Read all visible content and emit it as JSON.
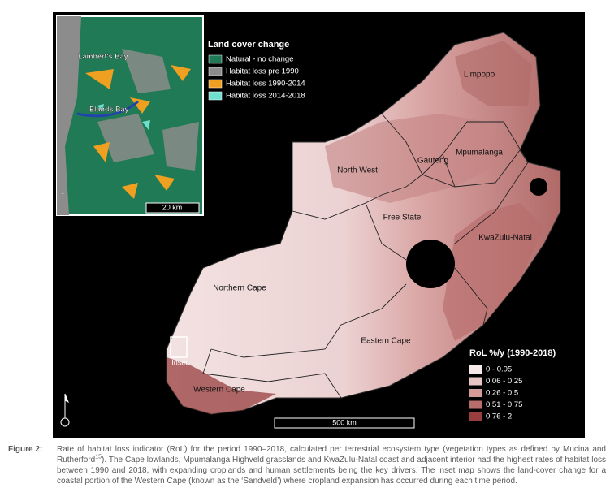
{
  "map": {
    "provinces": [
      "Limpopo",
      "Mpumalanga",
      "Gauteng",
      "North West",
      "Free State",
      "KwaZulu-Natal",
      "Northern Cape",
      "Eastern Cape",
      "Western Cape"
    ],
    "inset_label": "Inset",
    "scale_bar": "500 km",
    "legend": {
      "title": "RoL %/y (1990-2018)",
      "classes": [
        {
          "label": "0 - 0.05",
          "color": "#f6e9e9"
        },
        {
          "label": "0.06 - 0.25",
          "color": "#e8c4c4"
        },
        {
          "label": "0.26 - 0.5",
          "color": "#d39a98"
        },
        {
          "label": "0.51 - 0.75",
          "color": "#b86e6c"
        },
        {
          "label": "0.76 - 2",
          "color": "#983e3e"
        }
      ]
    }
  },
  "inset": {
    "places": [
      "Lambert's Bay",
      "Elands Bay"
    ],
    "scale_bar": "20 km",
    "legend": {
      "title": "Land cover change",
      "classes": [
        {
          "label": "Natural - no change",
          "color": "#1f7a55"
        },
        {
          "label": "Habitat loss  pre 1990",
          "color": "#8c8c8c"
        },
        {
          "label": "Habitat loss 1990-2014",
          "color": "#f0a020"
        },
        {
          "label": "Habitat loss 2014-2018",
          "color": "#6fe0d0"
        }
      ]
    }
  },
  "figure": {
    "label": "Figure 2:",
    "caption_1": "Rate of habitat loss indicator (RoL) for the period 1990–2018, calculated per terrestrial ecosystem type (vegetation types as defined by Mucina and Rutherford",
    "citation": "15",
    "caption_2": "). The Cape lowlands, Mpumalanga Highveld grasslands and KwaZulu-Natal coast and adjacent interior had the highest rates of habitat loss between 1990 and 2018, with expanding croplands and human settlements being the key drivers. The inset map shows the land-cover change for a coastal portion of the Western Cape (known as the ‘Sandveld’) where cropland expansion has occurred during each time period."
  }
}
